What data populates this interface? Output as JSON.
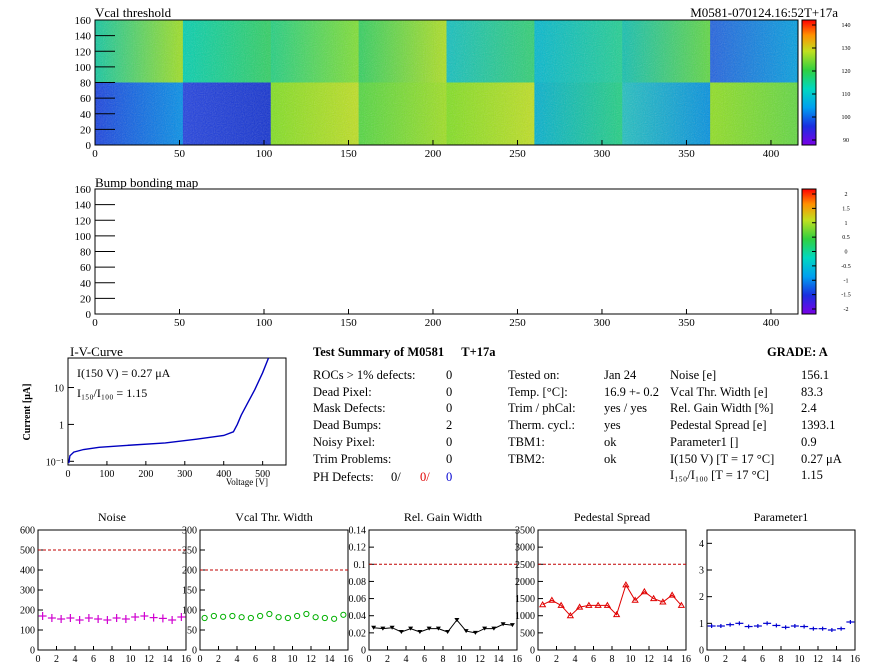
{
  "module_label": "M0581-070124.16:52T+17a",
  "vcal_map": {
    "title": "Vcal threshold",
    "x_ticks": [
      0,
      50,
      100,
      150,
      200,
      250,
      300,
      350,
      400
    ],
    "y_ticks": [
      0,
      20,
      40,
      60,
      80,
      100,
      120,
      140,
      160
    ],
    "palette_ticks": [
      "90",
      "100",
      "110",
      "120",
      "130",
      "140"
    ]
  },
  "bump_map": {
    "title": "Bump bonding map",
    "x_ticks": [
      0,
      50,
      100,
      150,
      200,
      250,
      300,
      350,
      400
    ],
    "y_ticks": [
      0,
      20,
      40,
      60,
      80,
      100,
      120,
      140,
      160
    ],
    "palette_ticks": [
      "-2",
      "-1.5",
      "-1",
      "-0.5",
      "0",
      "0.5",
      "1",
      "1.5",
      "2"
    ]
  },
  "iv_curve": {
    "title": "I-V-Curve",
    "ylabel": "Current [μA]",
    "xlabel": "Voltage [V]",
    "x_ticks": [
      0,
      100,
      200,
      300,
      400,
      500
    ],
    "y_ticks": [
      "10⁻¹",
      "1",
      "10"
    ],
    "note1": "I(150 V) = 0.27 μA",
    "note2": "I₁₅₀/I₁₀₀ =  1.15"
  },
  "summary": {
    "title": "Test Summary of M0581",
    "tag": "T+17a",
    "grade_label": "GRADE:  A",
    "rows": [
      {
        "label": "ROCs > 1% defects:",
        "value": "0"
      },
      {
        "label": "Dead Pixel:",
        "value": "0"
      },
      {
        "label": "Mask Defects:",
        "value": "0"
      },
      {
        "label": "Dead Bumps:",
        "value": "2"
      },
      {
        "label": "Noisy Pixel:",
        "value": "0"
      },
      {
        "label": "Trim Problems:",
        "value": "0"
      }
    ],
    "ph_label": "PH Defects:",
    "ph_values": [
      "0/",
      "0/",
      "0"
    ],
    "test_rows": [
      {
        "label": "Tested on:",
        "value": "Jan 24"
      },
      {
        "label": "Temp. [°C]:",
        "value": "16.9 +- 0.2"
      },
      {
        "label": "Trim / phCal:",
        "value": "yes / yes"
      },
      {
        "label": "Therm. cycl.:",
        "value": "yes"
      },
      {
        "label": "TBM1:",
        "value": "ok"
      },
      {
        "label": "TBM2:",
        "value": "ok"
      }
    ],
    "param_rows": [
      {
        "label": "Noise [e]",
        "value": "156.1"
      },
      {
        "label": "Vcal Thr. Width [e]",
        "value": "83.3"
      },
      {
        "label": "Rel. Gain Width [%]",
        "value": "2.4"
      },
      {
        "label": "Pedestal Spread [e]",
        "value": "1393.1"
      },
      {
        "label": "Parameter1 []",
        "value": "0.9"
      },
      {
        "label": "I(150 V) [T = 17 °C]",
        "value": "0.27 μA"
      },
      {
        "label": "I₁₅₀/I₁₀₀  [T = 17 °C]",
        "value": "1.15"
      }
    ]
  },
  "colors": {
    "noise": "#d000d0",
    "vcal": "#00b000",
    "gain": "#000000",
    "pedestal": "#e00000",
    "param": "#0000d0",
    "iv": "#0000c0",
    "cut": "#c00000"
  },
  "chart_data": [
    {
      "type": "scatter",
      "title": "Noise",
      "ylim": [
        0,
        600
      ],
      "y_ticks": [
        0,
        100,
        200,
        300,
        400,
        500,
        600
      ],
      "cut": 500,
      "x": [
        0,
        1,
        2,
        3,
        4,
        5,
        6,
        7,
        8,
        9,
        10,
        11,
        12,
        13,
        14,
        15
      ],
      "values": [
        170,
        160,
        155,
        160,
        150,
        160,
        155,
        150,
        160,
        155,
        165,
        170,
        162,
        158,
        150,
        165
      ]
    },
    {
      "type": "scatter",
      "title": "Vcal Thr. Width",
      "ylim": [
        0,
        300
      ],
      "y_ticks": [
        0,
        50,
        100,
        150,
        200,
        250,
        300
      ],
      "cut": 200,
      "x": [
        0,
        1,
        2,
        3,
        4,
        5,
        6,
        7,
        8,
        9,
        10,
        11,
        12,
        13,
        14,
        15
      ],
      "values": [
        80,
        85,
        83,
        85,
        82,
        80,
        85,
        90,
        82,
        80,
        85,
        90,
        82,
        80,
        78,
        88
      ]
    },
    {
      "type": "line",
      "title": "Rel. Gain Width",
      "ylim": [
        0,
        0.14
      ],
      "y_ticks": [
        0,
        0.02,
        0.04,
        0.06,
        0.08,
        0.1,
        0.12,
        0.14
      ],
      "cut": 0.1,
      "x": [
        0,
        1,
        2,
        3,
        4,
        5,
        6,
        7,
        8,
        9,
        10,
        11,
        12,
        13,
        14,
        15
      ],
      "values": [
        0.026,
        0.025,
        0.026,
        0.021,
        0.025,
        0.021,
        0.025,
        0.025,
        0.021,
        0.035,
        0.022,
        0.02,
        0.025,
        0.025,
        0.03,
        0.029
      ]
    },
    {
      "type": "line",
      "title": "Pedestal Spread",
      "ylim": [
        0,
        3500
      ],
      "y_ticks": [
        0,
        500,
        1000,
        1500,
        2000,
        2500,
        3000,
        3500
      ],
      "cut": 2500,
      "x": [
        0,
        1,
        2,
        3,
        4,
        5,
        6,
        7,
        8,
        9,
        10,
        11,
        12,
        13,
        14,
        15
      ],
      "values": [
        1320,
        1450,
        1300,
        1000,
        1250,
        1300,
        1300,
        1300,
        1030,
        1900,
        1450,
        1700,
        1500,
        1400,
        1600,
        1300
      ]
    },
    {
      "type": "scatter",
      "title": "Parameter1",
      "ylim": [
        0,
        4.5
      ],
      "y_ticks": [
        0,
        1,
        2,
        3,
        4
      ],
      "cut": null,
      "x": [
        0,
        1,
        2,
        3,
        4,
        5,
        6,
        7,
        8,
        9,
        10,
        11,
        12,
        13,
        14,
        15
      ],
      "values": [
        0.9,
        0.9,
        0.95,
        1.0,
        0.88,
        0.9,
        1.0,
        0.92,
        0.85,
        0.9,
        0.88,
        0.8,
        0.8,
        0.75,
        0.8,
        1.05
      ]
    }
  ]
}
